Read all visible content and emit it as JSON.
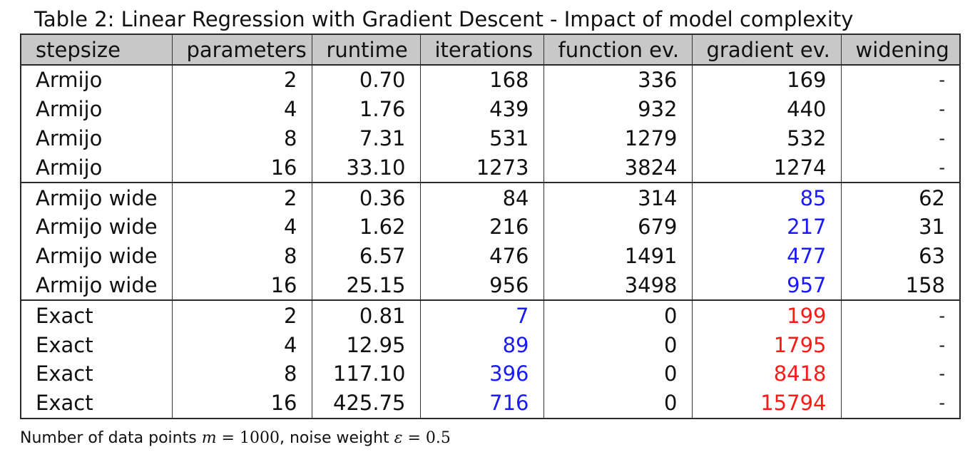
{
  "caption": "Table 2: Linear Regression with Gradient Descent - Impact of model complexity",
  "colors": {
    "highlight_blue": "#1a1aff",
    "highlight_red": "#ff1a1a",
    "header_bg": "#c8c8c8"
  },
  "table": {
    "headers": [
      "stepsize",
      "parameters",
      "runtime",
      "iterations",
      "function ev.",
      "gradient ev.",
      "widening"
    ],
    "rows": [
      {
        "stepsize": "Armijo",
        "parameters": "2",
        "runtime": "0.70",
        "iterations": "168",
        "function_ev": "336",
        "gradient_ev": "169",
        "widening": "-"
      },
      {
        "stepsize": "Armijo",
        "parameters": "4",
        "runtime": "1.76",
        "iterations": "439",
        "function_ev": "932",
        "gradient_ev": "440",
        "widening": "-"
      },
      {
        "stepsize": "Armijo",
        "parameters": "8",
        "runtime": "7.31",
        "iterations": "531",
        "function_ev": "1279",
        "gradient_ev": "532",
        "widening": "-"
      },
      {
        "stepsize": "Armijo",
        "parameters": "16",
        "runtime": "33.10",
        "iterations": "1273",
        "function_ev": "3824",
        "gradient_ev": "1274",
        "widening": "-"
      },
      {
        "stepsize": "Armijo wide",
        "parameters": "2",
        "runtime": "0.36",
        "iterations": "84",
        "function_ev": "314",
        "gradient_ev": "85",
        "widening": "62"
      },
      {
        "stepsize": "Armijo wide",
        "parameters": "4",
        "runtime": "1.62",
        "iterations": "216",
        "function_ev": "679",
        "gradient_ev": "217",
        "widening": "31"
      },
      {
        "stepsize": "Armijo wide",
        "parameters": "8",
        "runtime": "6.57",
        "iterations": "476",
        "function_ev": "1491",
        "gradient_ev": "477",
        "widening": "63"
      },
      {
        "stepsize": "Armijo wide",
        "parameters": "16",
        "runtime": "25.15",
        "iterations": "956",
        "function_ev": "3498",
        "gradient_ev": "957",
        "widening": "158"
      },
      {
        "stepsize": "Exact",
        "parameters": "2",
        "runtime": "0.81",
        "iterations": "7",
        "function_ev": "0",
        "gradient_ev": "199",
        "widening": "-"
      },
      {
        "stepsize": "Exact",
        "parameters": "4",
        "runtime": "12.95",
        "iterations": "89",
        "function_ev": "0",
        "gradient_ev": "1795",
        "widening": "-"
      },
      {
        "stepsize": "Exact",
        "parameters": "8",
        "runtime": "117.10",
        "iterations": "396",
        "function_ev": "0",
        "gradient_ev": "8418",
        "widening": "-"
      },
      {
        "stepsize": "Exact",
        "parameters": "16",
        "runtime": "425.75",
        "iterations": "716",
        "function_ev": "0",
        "gradient_ev": "15794",
        "widening": "-"
      }
    ]
  },
  "footnote": {
    "text_1": "Number of data points ",
    "m_symbol": "m",
    "m_value": " = 1000",
    "text_2": ", noise weight ",
    "eps_symbol": "ε",
    "eps_value": " = 0.5"
  }
}
